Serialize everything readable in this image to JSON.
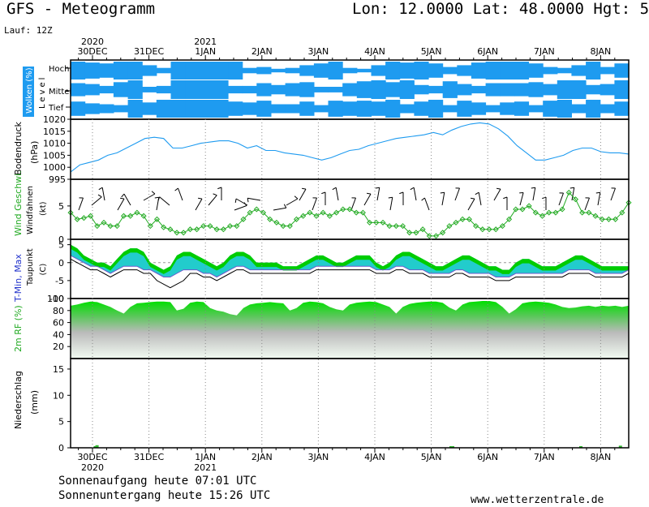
{
  "header": {
    "title": "GFS - Meteogramm",
    "coords": "Lon: 12.0000 Lat: 48.0000 Hgt: 5",
    "run": "Lauf: 12Z"
  },
  "footer": {
    "sunrise": "Sonnenaufgang heute 07:01 UTC",
    "sunset": "Sonnenuntergang heute 15:26 UTC",
    "website": "www.wetterzentrale.de"
  },
  "colors": {
    "cloud_blue": "#1e9bf0",
    "pressure_line": "#1e9bf0",
    "wind_green": "#22aa22",
    "tmax_green": "#00cc00",
    "tmin_teal": "#22cccc",
    "dewpoint": "#000000",
    "precip_green": "#33bb33"
  },
  "chart_data": {
    "type": "meteogram",
    "x_axis": {
      "unit": "date",
      "top_labels": [
        {
          "year": "2020",
          "day": "30DEC"
        },
        {
          "year": "",
          "day": "31DEC"
        },
        {
          "year": "2021",
          "day": "1JAN"
        },
        {
          "year": "",
          "day": "2JAN"
        },
        {
          "year": "",
          "day": "3JAN"
        },
        {
          "year": "",
          "day": "4JAN"
        },
        {
          "year": "",
          "day": "5JAN"
        },
        {
          "year": "",
          "day": "6JAN"
        },
        {
          "year": "",
          "day": "7JAN"
        },
        {
          "year": "",
          "day": "8JAN"
        }
      ],
      "bottom_labels": [
        {
          "day": "30DEC",
          "year": "2020"
        },
        {
          "day": "31DEC",
          "year": ""
        },
        {
          "day": "1JAN",
          "year": "2021"
        },
        {
          "day": "2JAN",
          "year": ""
        },
        {
          "day": "3JAN",
          "year": ""
        },
        {
          "day": "4JAN",
          "year": ""
        },
        {
          "day": "5JAN",
          "year": ""
        },
        {
          "day": "6JAN",
          "year": ""
        },
        {
          "day": "7JAN",
          "year": ""
        },
        {
          "day": "8JAN",
          "year": ""
        }
      ]
    },
    "clouds": {
      "ylabel_main": "Wolken (%)",
      "ylabel_sub": "Level",
      "levels": [
        "Hoch",
        "Mittel",
        "Tief"
      ],
      "hoch": [
        100,
        90,
        80,
        100,
        100,
        60,
        30,
        100,
        100,
        100,
        100,
        100,
        30,
        40,
        20,
        30,
        60,
        80,
        100,
        30,
        20,
        60,
        100,
        90,
        100,
        80,
        40,
        60,
        90,
        100,
        100,
        100,
        80,
        40,
        30,
        60,
        100,
        40,
        80
      ],
      "mittel": [
        70,
        60,
        40,
        80,
        100,
        30,
        40,
        100,
        100,
        100,
        100,
        40,
        40,
        70,
        50,
        70,
        80,
        30,
        30,
        70,
        90,
        100,
        80,
        100,
        50,
        40,
        90,
        60,
        40,
        70,
        70,
        70,
        80,
        60,
        100,
        100,
        50,
        60,
        100
      ],
      "tief": [
        80,
        60,
        50,
        40,
        100,
        70,
        100,
        100,
        100,
        100,
        100,
        80,
        70,
        90,
        50,
        50,
        80,
        40,
        90,
        80,
        90,
        80,
        100,
        50,
        80,
        100,
        40,
        90,
        70,
        40,
        70,
        80,
        40,
        90,
        100,
        50,
        100,
        50,
        80
      ]
    },
    "pressure": {
      "ylabel_main": "Bodendruck",
      "ylabel_unit": "(hPa)",
      "yticks": [
        "1020",
        "1015",
        "1010",
        "1005",
        "1000",
        "995"
      ],
      "ylim": [
        995,
        1020
      ],
      "values": [
        998,
        1001,
        1002,
        1003,
        1005,
        1006,
        1008,
        1010,
        1012,
        1012.5,
        1012,
        1008,
        1008,
        1009,
        1010,
        1010.5,
        1011,
        1011,
        1010,
        1008,
        1009,
        1007,
        1007,
        1006,
        1005.5,
        1005,
        1004,
        1003,
        1004,
        1005.5,
        1007,
        1007.5,
        1009,
        1010,
        1011,
        1012,
        1012.5,
        1013,
        1013.5,
        1014.5,
        1013.5,
        1015.5,
        1017,
        1018,
        1018.5,
        1018,
        1016,
        1013,
        1009,
        1006,
        1003,
        1003,
        1004,
        1005,
        1007,
        1008,
        1008,
        1006.5,
        1006,
        1006,
        1005.5
      ]
    },
    "wind": {
      "ylabel_main": "Wind Geschwi.",
      "ylabel_sub": "Windfahnen",
      "ylabel_unit": "(kt)",
      "yticks": [
        "5",
        "0"
      ],
      "ylim": [
        0,
        9
      ],
      "speed": [
        4,
        3,
        3.2,
        3.5,
        2,
        2.5,
        2,
        2,
        3.5,
        3.5,
        4,
        3.5,
        2,
        3,
        1.8,
        1.5,
        1,
        1,
        1.5,
        1.5,
        2,
        2,
        1.5,
        1.5,
        2,
        2,
        3,
        4,
        4.5,
        4,
        3,
        2.5,
        2,
        2,
        3,
        3.5,
        4,
        3.5,
        4,
        3.5,
        4,
        4.5,
        4.5,
        4,
        4,
        2.5,
        2.5,
        2.5,
        2,
        2,
        2,
        1,
        1,
        1.5,
        0.5,
        0.5,
        1,
        2,
        2.5,
        3,
        3,
        2,
        1.5,
        1.5,
        1.5,
        2,
        3,
        4.5,
        4.5,
        5,
        4,
        3.5,
        4,
        4,
        4.5,
        7,
        6,
        4,
        4,
        3.5,
        3,
        3,
        3,
        4,
        5.5
      ]
    },
    "temperature": {
      "ylabel_main": "T-Min, Max",
      "ylabel_sub": "Taupunkt",
      "ylabel_unit": "(C)",
      "yticks": [
        "5",
        "0",
        "-5",
        "-10"
      ],
      "ylim": [
        -10,
        6.5
      ],
      "tmax": [
        5,
        4,
        2,
        1,
        0,
        0,
        -1,
        1,
        3,
        4,
        4,
        3,
        0,
        -1,
        -2,
        -1,
        2,
        3,
        3,
        2,
        1,
        0,
        -1,
        0,
        2,
        3,
        3,
        2,
        0,
        0,
        0,
        0,
        -1,
        -1,
        -1,
        0,
        1,
        2,
        2,
        1,
        0,
        0,
        1,
        2,
        2,
        2,
        0,
        -1,
        0,
        2,
        3,
        3,
        2,
        1,
        0,
        -1,
        -1,
        0,
        1,
        2,
        2,
        1,
        0,
        -1,
        -1,
        -2,
        -2,
        0,
        1,
        1,
        0,
        -1,
        -1,
        -1,
        0,
        1,
        2,
        2,
        1,
        0,
        -1,
        -1,
        -1,
        -1,
        -1
      ],
      "tmin": [
        2,
        1,
        0,
        -1,
        -1,
        -2,
        -3,
        -2,
        -1,
        -1,
        -1,
        -2,
        -2,
        -3,
        -4,
        -4,
        -3,
        -2,
        -2,
        -2,
        -3,
        -3,
        -4,
        -3,
        -2,
        -1,
        -1,
        -2,
        -2,
        -2,
        -2,
        -2,
        -2,
        -2,
        -2,
        -2,
        -2,
        -1,
        -1,
        -1,
        -1,
        -1,
        -1,
        -1,
        -1,
        -1,
        -2,
        -2,
        -2,
        -1,
        -1,
        -2,
        -2,
        -2,
        -3,
        -3,
        -3,
        -3,
        -2,
        -2,
        -3,
        -3,
        -3,
        -3,
        -4,
        -4,
        -4,
        -3,
        -3,
        -3,
        -3,
        -3,
        -3,
        -3,
        -3,
        -2,
        -2,
        -2,
        -2,
        -3,
        -3,
        -3,
        -3,
        -3,
        -2
      ],
      "dewpoint": [
        1,
        0,
        -1,
        -2,
        -2,
        -3,
        -4,
        -3,
        -2,
        -2,
        -2,
        -3,
        -3,
        -5,
        -6,
        -7,
        -6,
        -5,
        -3,
        -3,
        -4,
        -4,
        -5,
        -4,
        -3,
        -2,
        -2,
        -3,
        -3,
        -3,
        -3,
        -3,
        -3,
        -3,
        -3,
        -3,
        -3,
        -2,
        -2,
        -2,
        -2,
        -2,
        -2,
        -2,
        -2,
        -2,
        -3,
        -3,
        -3,
        -2,
        -2,
        -3,
        -3,
        -3,
        -4,
        -4,
        -4,
        -4,
        -3,
        -3,
        -4,
        -4,
        -4,
        -4,
        -5,
        -5,
        -5,
        -4,
        -4,
        -4,
        -4,
        -4,
        -4,
        -4,
        -4,
        -3,
        -3,
        -3,
        -3,
        -4,
        -4,
        -4,
        -4,
        -4,
        -3
      ]
    },
    "humidity": {
      "ylabel_main": "2m RF (%)",
      "yticks": [
        "100",
        "80",
        "60",
        "40",
        "20"
      ],
      "ylim": [
        0,
        100
      ],
      "values": [
        88,
        90,
        93,
        95,
        94,
        90,
        86,
        80,
        75,
        86,
        92,
        93,
        94,
        95,
        95,
        94,
        80,
        83,
        93,
        95,
        94,
        84,
        80,
        78,
        74,
        72,
        84,
        90,
        92,
        93,
        94,
        93,
        92,
        80,
        84,
        93,
        95,
        94,
        92,
        86,
        82,
        80,
        90,
        93,
        94,
        95,
        94,
        90,
        86,
        75,
        86,
        91,
        93,
        94,
        95,
        95,
        93,
        85,
        80,
        90,
        94,
        95,
        96,
        96,
        94,
        86,
        75,
        82,
        92,
        94,
        95,
        94,
        93,
        90,
        86,
        84,
        85,
        87,
        88,
        86,
        88,
        87,
        88,
        86,
        88
      ]
    },
    "precipitation": {
      "ylabel_main": "Niederschlag",
      "ylabel_unit": "(mm)",
      "yticks": [
        "15",
        "10",
        "5",
        "0"
      ],
      "ylim": [
        0,
        17
      ],
      "events": [
        {
          "t": 0.05,
          "mm": 0.2
        },
        {
          "t": 0.08,
          "mm": 0.5
        },
        {
          "t": 6.35,
          "mm": 0.2
        },
        {
          "t": 6.38,
          "mm": 0.3
        },
        {
          "t": 8.65,
          "mm": 0.2
        },
        {
          "t": 9.35,
          "mm": 0.4
        }
      ]
    }
  }
}
